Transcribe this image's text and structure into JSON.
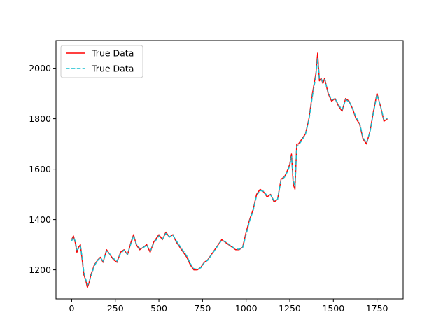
{
  "chart_data": {
    "type": "line",
    "title": "",
    "xlabel": "",
    "ylabel": "",
    "xlim": [
      -90,
      1900
    ],
    "ylim": [
      1085,
      2110
    ],
    "xticks": [
      0,
      250,
      500,
      750,
      1000,
      1250,
      1500,
      1750
    ],
    "yticks": [
      1200,
      1400,
      1600,
      1800,
      2000
    ],
    "xtick_labels": [
      "0",
      "250",
      "500",
      "750",
      "1000",
      "1250",
      "1500",
      "1750"
    ],
    "ytick_labels": [
      "1200",
      "1400",
      "1600",
      "1800",
      "2000"
    ],
    "grid": false,
    "legend": {
      "position": "upper-left",
      "entries": [
        "True Data",
        "True Data"
      ]
    },
    "series": [
      {
        "name": "True Data",
        "color": "#ff0000",
        "style": "solid",
        "x": [
          0,
          10,
          20,
          30,
          40,
          50,
          60,
          70,
          80,
          90,
          100,
          110,
          120,
          130,
          140,
          150,
          165,
          180,
          200,
          220,
          240,
          260,
          280,
          300,
          320,
          340,
          355,
          370,
          390,
          410,
          430,
          450,
          470,
          490,
          500,
          520,
          540,
          560,
          580,
          600,
          620,
          640,
          660,
          680,
          700,
          720,
          740,
          760,
          780,
          800,
          820,
          840,
          860,
          880,
          900,
          920,
          940,
          960,
          980,
          1000,
          1020,
          1040,
          1060,
          1080,
          1100,
          1120,
          1140,
          1160,
          1180,
          1200,
          1220,
          1240,
          1250,
          1260,
          1270,
          1280,
          1290,
          1300,
          1320,
          1340,
          1360,
          1380,
          1400,
          1410,
          1420,
          1430,
          1440,
          1450,
          1470,
          1490,
          1510,
          1530,
          1550,
          1570,
          1590,
          1610,
          1630,
          1650,
          1670,
          1690,
          1710,
          1730,
          1750,
          1770,
          1790,
          1810
        ],
        "values": [
          1320,
          1335,
          1310,
          1270,
          1290,
          1300,
          1240,
          1180,
          1160,
          1130,
          1150,
          1180,
          1200,
          1220,
          1230,
          1240,
          1250,
          1230,
          1280,
          1260,
          1240,
          1230,
          1270,
          1280,
          1260,
          1310,
          1340,
          1300,
          1280,
          1290,
          1300,
          1270,
          1310,
          1330,
          1340,
          1320,
          1350,
          1330,
          1340,
          1310,
          1290,
          1270,
          1250,
          1220,
          1200,
          1200,
          1210,
          1230,
          1240,
          1260,
          1280,
          1300,
          1320,
          1310,
          1300,
          1290,
          1280,
          1280,
          1290,
          1350,
          1400,
          1440,
          1500,
          1520,
          1510,
          1490,
          1500,
          1470,
          1480,
          1560,
          1570,
          1600,
          1620,
          1660,
          1540,
          1520,
          1700,
          1700,
          1720,
          1740,
          1800,
          1900,
          1980,
          2060,
          1950,
          1960,
          1940,
          1960,
          1900,
          1870,
          1880,
          1850,
          1830,
          1880,
          1870,
          1840,
          1800,
          1780,
          1720,
          1700,
          1750,
          1830,
          1900,
          1850,
          1790,
          1800
        ]
      },
      {
        "name": "True Data",
        "color": "#17becf",
        "style": "dashed",
        "x": [
          0,
          10,
          20,
          30,
          40,
          50,
          60,
          70,
          80,
          90,
          100,
          110,
          120,
          130,
          140,
          150,
          165,
          180,
          200,
          220,
          240,
          260,
          280,
          300,
          320,
          340,
          355,
          370,
          390,
          410,
          430,
          450,
          470,
          490,
          500,
          520,
          540,
          560,
          580,
          600,
          620,
          640,
          660,
          680,
          700,
          720,
          740,
          760,
          780,
          800,
          820,
          840,
          860,
          880,
          900,
          920,
          940,
          960,
          980,
          1000,
          1020,
          1040,
          1060,
          1080,
          1100,
          1120,
          1140,
          1160,
          1180,
          1200,
          1220,
          1240,
          1250,
          1260,
          1270,
          1280,
          1290,
          1300,
          1320,
          1340,
          1360,
          1380,
          1400,
          1410,
          1420,
          1430,
          1440,
          1450,
          1470,
          1490,
          1510,
          1530,
          1550,
          1570,
          1590,
          1610,
          1630,
          1650,
          1670,
          1690,
          1710,
          1730,
          1750,
          1770,
          1790,
          1810
        ],
        "values": [
          1315,
          1330,
          1315,
          1280,
          1285,
          1295,
          1250,
          1190,
          1165,
          1140,
          1150,
          1175,
          1195,
          1215,
          1228,
          1238,
          1248,
          1235,
          1275,
          1262,
          1245,
          1235,
          1265,
          1278,
          1262,
          1305,
          1335,
          1305,
          1285,
          1288,
          1298,
          1275,
          1305,
          1325,
          1335,
          1322,
          1345,
          1332,
          1338,
          1315,
          1295,
          1275,
          1255,
          1225,
          1205,
          1202,
          1208,
          1228,
          1238,
          1258,
          1278,
          1298,
          1318,
          1312,
          1302,
          1292,
          1283,
          1282,
          1288,
          1340,
          1395,
          1435,
          1495,
          1515,
          1512,
          1495,
          1498,
          1475,
          1480,
          1555,
          1568,
          1595,
          1615,
          1650,
          1560,
          1530,
          1690,
          1695,
          1715,
          1738,
          1795,
          1890,
          1970,
          2040,
          1960,
          1958,
          1945,
          1955,
          1905,
          1875,
          1880,
          1855,
          1835,
          1875,
          1868,
          1842,
          1805,
          1785,
          1725,
          1705,
          1748,
          1825,
          1895,
          1852,
          1795,
          1802
        ]
      }
    ]
  }
}
